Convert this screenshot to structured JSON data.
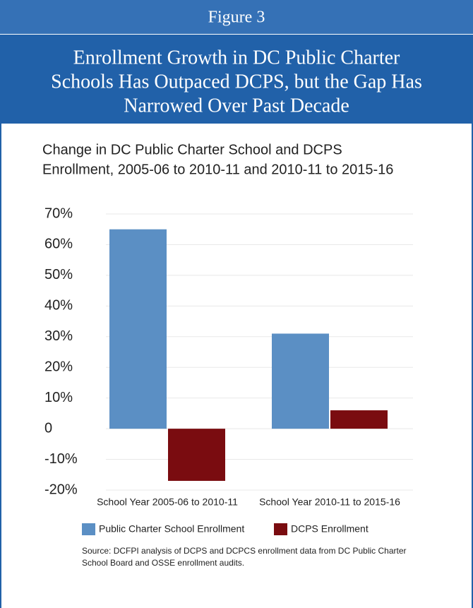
{
  "header": {
    "figure_label": "Figure 3",
    "title_lines": [
      "Enrollment Growth in DC Public Charter",
      "Schools Has Outpaced DCPS, but the Gap Has",
      "Narrowed Over Past Decade"
    ]
  },
  "chart_data": {
    "type": "bar",
    "title_lines": [
      "Change in DC Public Charter School and DCPS",
      "Enrollment, 2005-06 to 2010-11 and 2010-11 to 2015-16"
    ],
    "categories": [
      "School Year 2005-06 to 2010-11",
      "School Year 2010-11 to 2015-16"
    ],
    "series": [
      {
        "name": "Public Charter School Enrollment",
        "color": "#5b8fc4",
        "values": [
          65,
          31
        ]
      },
      {
        "name": "DCPS Enrollment",
        "color": "#7a0c10",
        "values": [
          -17,
          6
        ]
      }
    ],
    "ylim": [
      -20,
      70
    ],
    "yticks": [
      {
        "value": -20,
        "label": "-20%"
      },
      {
        "value": -10,
        "label": "-10%"
      },
      0,
      {
        "value": 10,
        "label": "10%"
      },
      {
        "value": 20,
        "label": "20%"
      },
      {
        "value": 30,
        "label": "30%"
      },
      {
        "value": 40,
        "label": "40%"
      },
      {
        "value": 50,
        "label": "50%"
      },
      {
        "value": 60,
        "label": "60%"
      },
      {
        "value": 70,
        "label": "70%"
      }
    ],
    "grid": true,
    "note_lines": [
      "Source: DCFPI analysis of DCPS and DCPCS enrollment data from DC Public Charter",
      "School Board and OSSE enrollment audits."
    ]
  }
}
